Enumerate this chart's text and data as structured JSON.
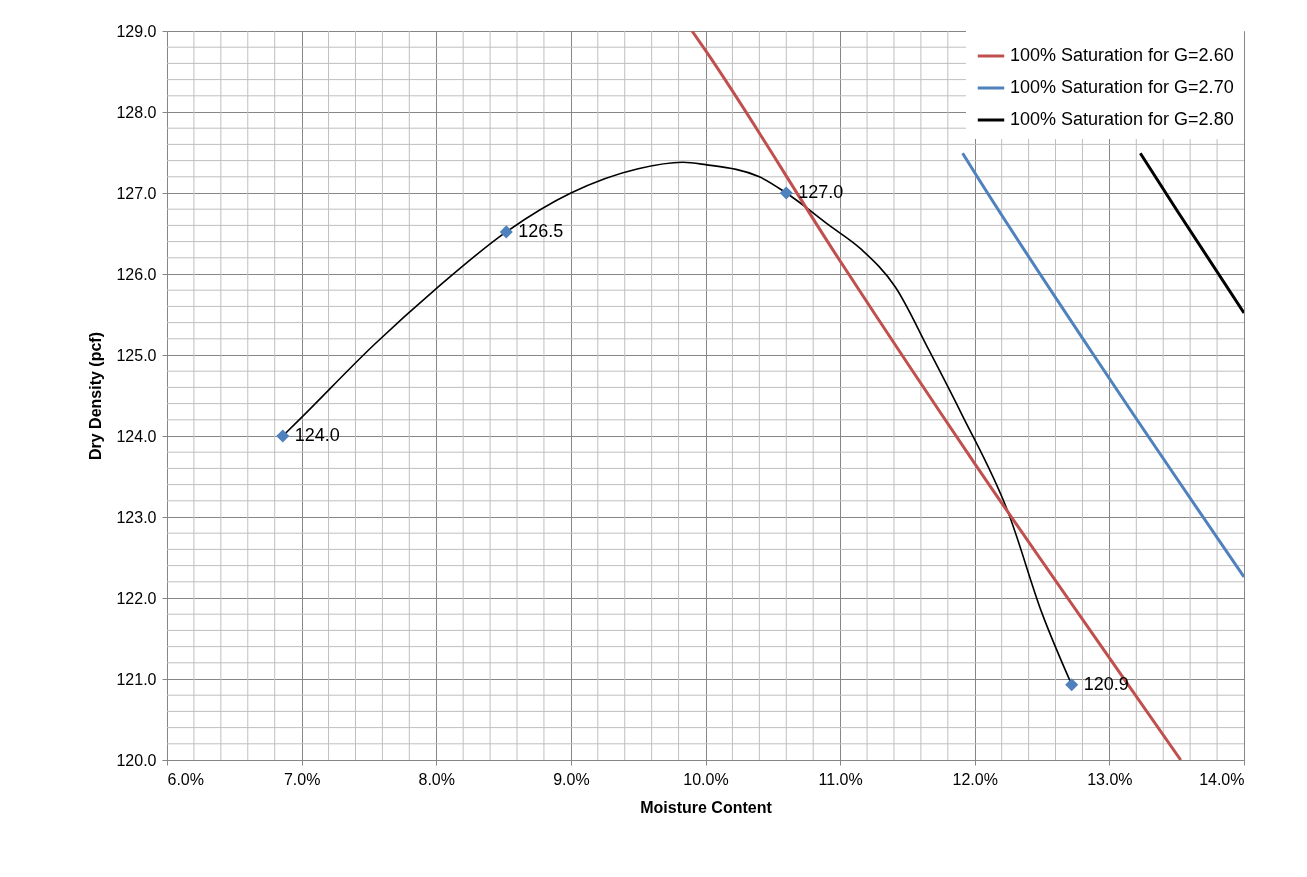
{
  "chart_data": {
    "type": "scatter",
    "xlabel": "Moisture Content",
    "ylabel": "Dry Density (pcf)",
    "xlim": [
      6,
      14
    ],
    "xticks": [
      {
        "value": 6,
        "label": "6.0%"
      },
      {
        "value": 7,
        "label": "7.0%"
      },
      {
        "value": 8,
        "label": "8.0%"
      },
      {
        "value": 9,
        "label": "9.0%"
      },
      {
        "value": 10,
        "label": "10.0%"
      },
      {
        "value": 11,
        "label": "11.0%"
      },
      {
        "value": 12,
        "label": "12.0%"
      },
      {
        "value": 13,
        "label": "13.0%"
      },
      {
        "value": 14,
        "label": "14.0%"
      }
    ],
    "ylim": [
      120,
      129
    ],
    "yticks": [
      {
        "value": 120,
        "label": "120.0"
      },
      {
        "value": 121,
        "label": "121.0"
      },
      {
        "value": 122,
        "label": "122.0"
      },
      {
        "value": 123,
        "label": "123.0"
      },
      {
        "value": 124,
        "label": "124.0"
      },
      {
        "value": 125,
        "label": "125.0"
      },
      {
        "value": 126,
        "label": "126.0"
      },
      {
        "value": 127,
        "label": "127.0"
      },
      {
        "value": 128,
        "label": "128.0"
      },
      {
        "value": 129,
        "label": "129.0"
      }
    ],
    "grid": true,
    "legend": "top right",
    "series": [
      {
        "color": "#4f81bd",
        "marker": "diamond",
        "x": [
          6.86,
          8.52,
          10.6,
          12.72
        ],
        "values": [
          124.0,
          126.52,
          127.0,
          120.93
        ],
        "value_labels": [
          "124.0",
          "126.5",
          "127.0",
          "120.9"
        ]
      },
      {
        "type": "line",
        "color": "#000000",
        "x": [
          6.86,
          7.0,
          7.54,
          8.0,
          8.52,
          9.0,
          9.5,
          9.83,
          10.0,
          10.4,
          10.6,
          10.92,
          11.16,
          11.41,
          11.66,
          11.9,
          12.25,
          12.5,
          12.72
        ],
        "values": [
          124.0,
          124.23,
          125.13,
          125.82,
          126.52,
          127.0,
          127.3,
          127.38,
          127.35,
          127.2,
          127.0,
          126.6,
          126.3,
          125.84,
          125.06,
          124.28,
          123.05,
          121.81,
          120.93
        ]
      },
      {
        "type": "line",
        "name": "100% Saturation for G=2.60",
        "color": "#c0504d",
        "x": [
          9.9,
          10.0,
          11.0,
          12.0,
          13.0,
          13.53
        ],
        "values": [
          129.0,
          128.76,
          126.16,
          123.66,
          121.26,
          120.0
        ]
      },
      {
        "type": "line",
        "name": "100% Saturation for G=2.70",
        "color": "#4f81bd",
        "x": [
          11.91,
          12.0,
          13.0,
          14.0
        ],
        "values": [
          127.49,
          127.25,
          124.71,
          122.26
        ]
      },
      {
        "type": "line",
        "name": "100% Saturation for G=2.80",
        "color": "#000000",
        "x": [
          13.23,
          13.5,
          14.0
        ],
        "values": [
          127.49,
          126.79,
          125.52
        ]
      }
    ]
  }
}
